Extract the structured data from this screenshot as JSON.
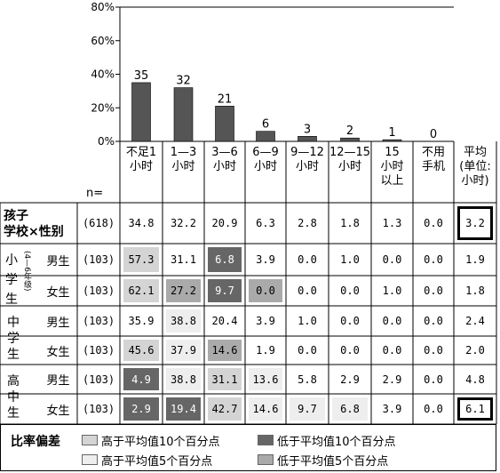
{
  "chart_data": {
    "type": "bar",
    "categories": [
      "不足1小时",
      "1—3小时",
      "3—6小时",
      "6—9小时",
      "9—12小时",
      "12—15小时",
      "15小时以上",
      "不用手机"
    ],
    "values": [
      35,
      32,
      21,
      6,
      3,
      2,
      1,
      0
    ],
    "ylim": [
      0,
      80
    ],
    "yticks": [
      "0%",
      "20%",
      "40%",
      "60%",
      "80%"
    ],
    "ytick_values": [
      0,
      20,
      40,
      60,
      80
    ],
    "bar_color": "#555555"
  },
  "header": {
    "cols": [
      [
        "不足1",
        "小时"
      ],
      [
        "1—3",
        "小时"
      ],
      [
        "3—6",
        "小时"
      ],
      [
        "6—9",
        "小时"
      ],
      [
        "9—12",
        "小时"
      ],
      [
        "12—15",
        "小时"
      ],
      [
        "15",
        "小时",
        "以上"
      ],
      [
        "不用",
        "手机"
      ],
      [
        "平均",
        "(单位:",
        "小时)"
      ]
    ],
    "n_label": "n="
  },
  "table": {
    "rows": [
      {
        "group": "孩子学校×性别",
        "sex": "",
        "n": "(618)",
        "vals": [
          "34.8",
          "32.2",
          "20.9",
          "6.3",
          "2.8",
          "1.8",
          "1.3",
          "0.0",
          "3.2"
        ],
        "shade": [
          "",
          "",
          "",
          "",
          "",
          "",
          "",
          "",
          ""
        ],
        "box": [
          false,
          false,
          false,
          false,
          false,
          false,
          false,
          false,
          true
        ]
      },
      {
        "group": "小学生",
        "sex": "男生",
        "n": "(103)",
        "vals": [
          "57.3",
          "31.1",
          "6.8",
          "3.9",
          "0.0",
          "1.0",
          "0.0",
          "0.0",
          "1.9"
        ],
        "shade": [
          "l10",
          "",
          "d10",
          "",
          "",
          "",
          "",
          "",
          ""
        ],
        "box": [
          false,
          false,
          false,
          false,
          false,
          false,
          false,
          false,
          false
        ]
      },
      {
        "group": "小学生",
        "sex": "女生",
        "n": "(103)",
        "vals": [
          "62.1",
          "27.2",
          "9.7",
          "0.0",
          "0.0",
          "0.0",
          "1.0",
          "0.0",
          "1.8"
        ],
        "shade": [
          "l10",
          "d5",
          "d10",
          "d5",
          "",
          "",
          "",
          "",
          ""
        ],
        "box": [
          false,
          false,
          false,
          false,
          false,
          false,
          false,
          false,
          false
        ]
      },
      {
        "group": "中学生",
        "sex": "男生",
        "n": "(103)",
        "vals": [
          "35.9",
          "38.8",
          "20.4",
          "3.9",
          "1.0",
          "0.0",
          "0.0",
          "0.0",
          "2.4"
        ],
        "shade": [
          "",
          "l5",
          "",
          "",
          "",
          "",
          "",
          "",
          ""
        ],
        "box": [
          false,
          false,
          false,
          false,
          false,
          false,
          false,
          false,
          false
        ]
      },
      {
        "group": "中学生",
        "sex": "女生",
        "n": "(103)",
        "vals": [
          "45.6",
          "37.9",
          "14.6",
          "1.9",
          "0.0",
          "0.0",
          "0.0",
          "0.0",
          "2.0"
        ],
        "shade": [
          "l10",
          "l5",
          "d5",
          "",
          "",
          "",
          "",
          "",
          ""
        ],
        "box": [
          false,
          false,
          false,
          false,
          false,
          false,
          false,
          false,
          false
        ]
      },
      {
        "group": "高中生",
        "sex": "男生",
        "n": "(103)",
        "vals": [
          "4.9",
          "38.8",
          "31.1",
          "13.6",
          "5.8",
          "2.9",
          "2.9",
          "0.0",
          "4.8"
        ],
        "shade": [
          "d10",
          "l5",
          "l10",
          "l5",
          "",
          "",
          "",
          "",
          ""
        ],
        "box": [
          false,
          false,
          false,
          false,
          false,
          false,
          false,
          false,
          false
        ]
      },
      {
        "group": "高中生",
        "sex": "女生",
        "n": "(103)",
        "vals": [
          "2.9",
          "19.4",
          "42.7",
          "14.6",
          "9.7",
          "6.8",
          "3.9",
          "0.0",
          "6.1"
        ],
        "shade": [
          "d10",
          "d10",
          "l10",
          "l5",
          "l5",
          "l5",
          "",
          "",
          ""
        ],
        "box": [
          false,
          false,
          false,
          false,
          false,
          false,
          false,
          false,
          true
        ]
      }
    ],
    "group_labels": {
      "top": [
        "孩子",
        "学校×性别"
      ],
      "primary": [
        "小",
        "学",
        "生"
      ],
      "primary_sub": "(4—6年级)",
      "middle": [
        "中",
        "学",
        "生"
      ],
      "high": [
        "高",
        "中",
        "生"
      ]
    }
  },
  "legend": {
    "title": "比率偏差",
    "items": [
      {
        "key": "l10",
        "label": "高于平均值10个百分点",
        "color": "#d4d4d4"
      },
      {
        "key": "d10",
        "label": "低于平均值10个百分点",
        "color": "#666666"
      },
      {
        "key": "l5",
        "label": "高于平均值5个百分点",
        "color": "#eeeeee"
      },
      {
        "key": "d5",
        "label": "低于平均值5个百分点",
        "color": "#aaaaaa"
      }
    ]
  }
}
